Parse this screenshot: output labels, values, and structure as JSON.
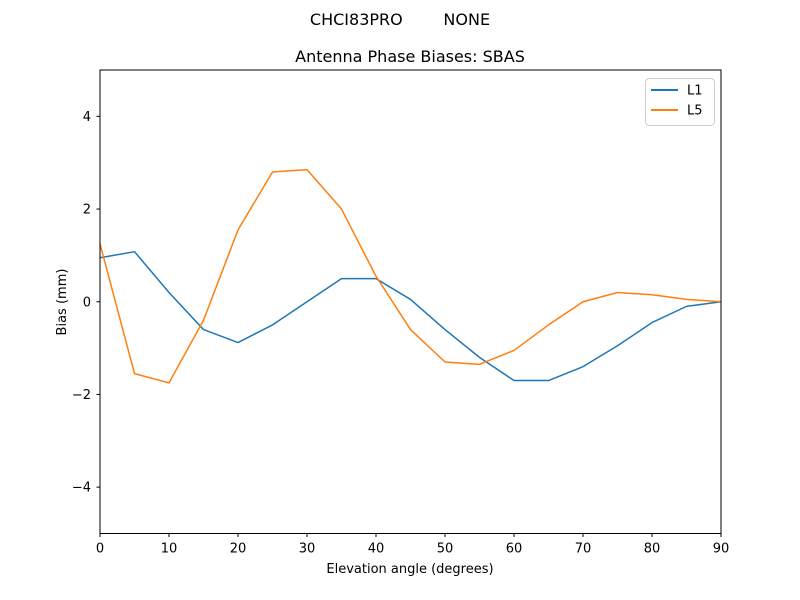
{
  "suptitle": "CHCI83PRO        NONE",
  "chart_data": {
    "type": "line",
    "title": "Antenna Phase Biases: SBAS",
    "xlabel": "Elevation angle (degrees)",
    "ylabel": "Bias (mm)",
    "xlim": [
      0,
      90
    ],
    "ylim": [
      -5,
      5
    ],
    "x_ticks": [
      0,
      10,
      20,
      30,
      40,
      50,
      60,
      70,
      80,
      90
    ],
    "y_ticks": [
      -4,
      -2,
      0,
      2,
      4
    ],
    "grid": false,
    "legend": {
      "position": "upper right",
      "entries": [
        "L1",
        "L5"
      ]
    },
    "x": [
      0,
      5,
      10,
      15,
      20,
      25,
      30,
      35,
      40,
      45,
      50,
      55,
      60,
      65,
      70,
      75,
      80,
      85,
      90
    ],
    "series": [
      {
        "name": "L1",
        "color": "#1f77b4",
        "values": [
          0.95,
          1.08,
          0.2,
          -0.6,
          -0.88,
          -0.5,
          0.0,
          0.5,
          0.5,
          0.05,
          -0.6,
          -1.2,
          -1.7,
          -1.7,
          -1.4,
          -0.95,
          -0.45,
          -0.1,
          0.0
        ]
      },
      {
        "name": "L5",
        "color": "#ff7f0e",
        "values": [
          1.25,
          -1.55,
          -1.75,
          -0.4,
          1.55,
          2.8,
          2.85,
          2.0,
          0.55,
          -0.6,
          -1.3,
          -1.35,
          -1.05,
          -0.5,
          0.0,
          0.2,
          0.15,
          0.05,
          0.0
        ]
      }
    ]
  },
  "colors": {
    "axis": "#000000",
    "background": "#ffffff",
    "legend_border": "#cccccc",
    "series_l1": "#1f77b4",
    "series_l5": "#ff7f0e"
  }
}
